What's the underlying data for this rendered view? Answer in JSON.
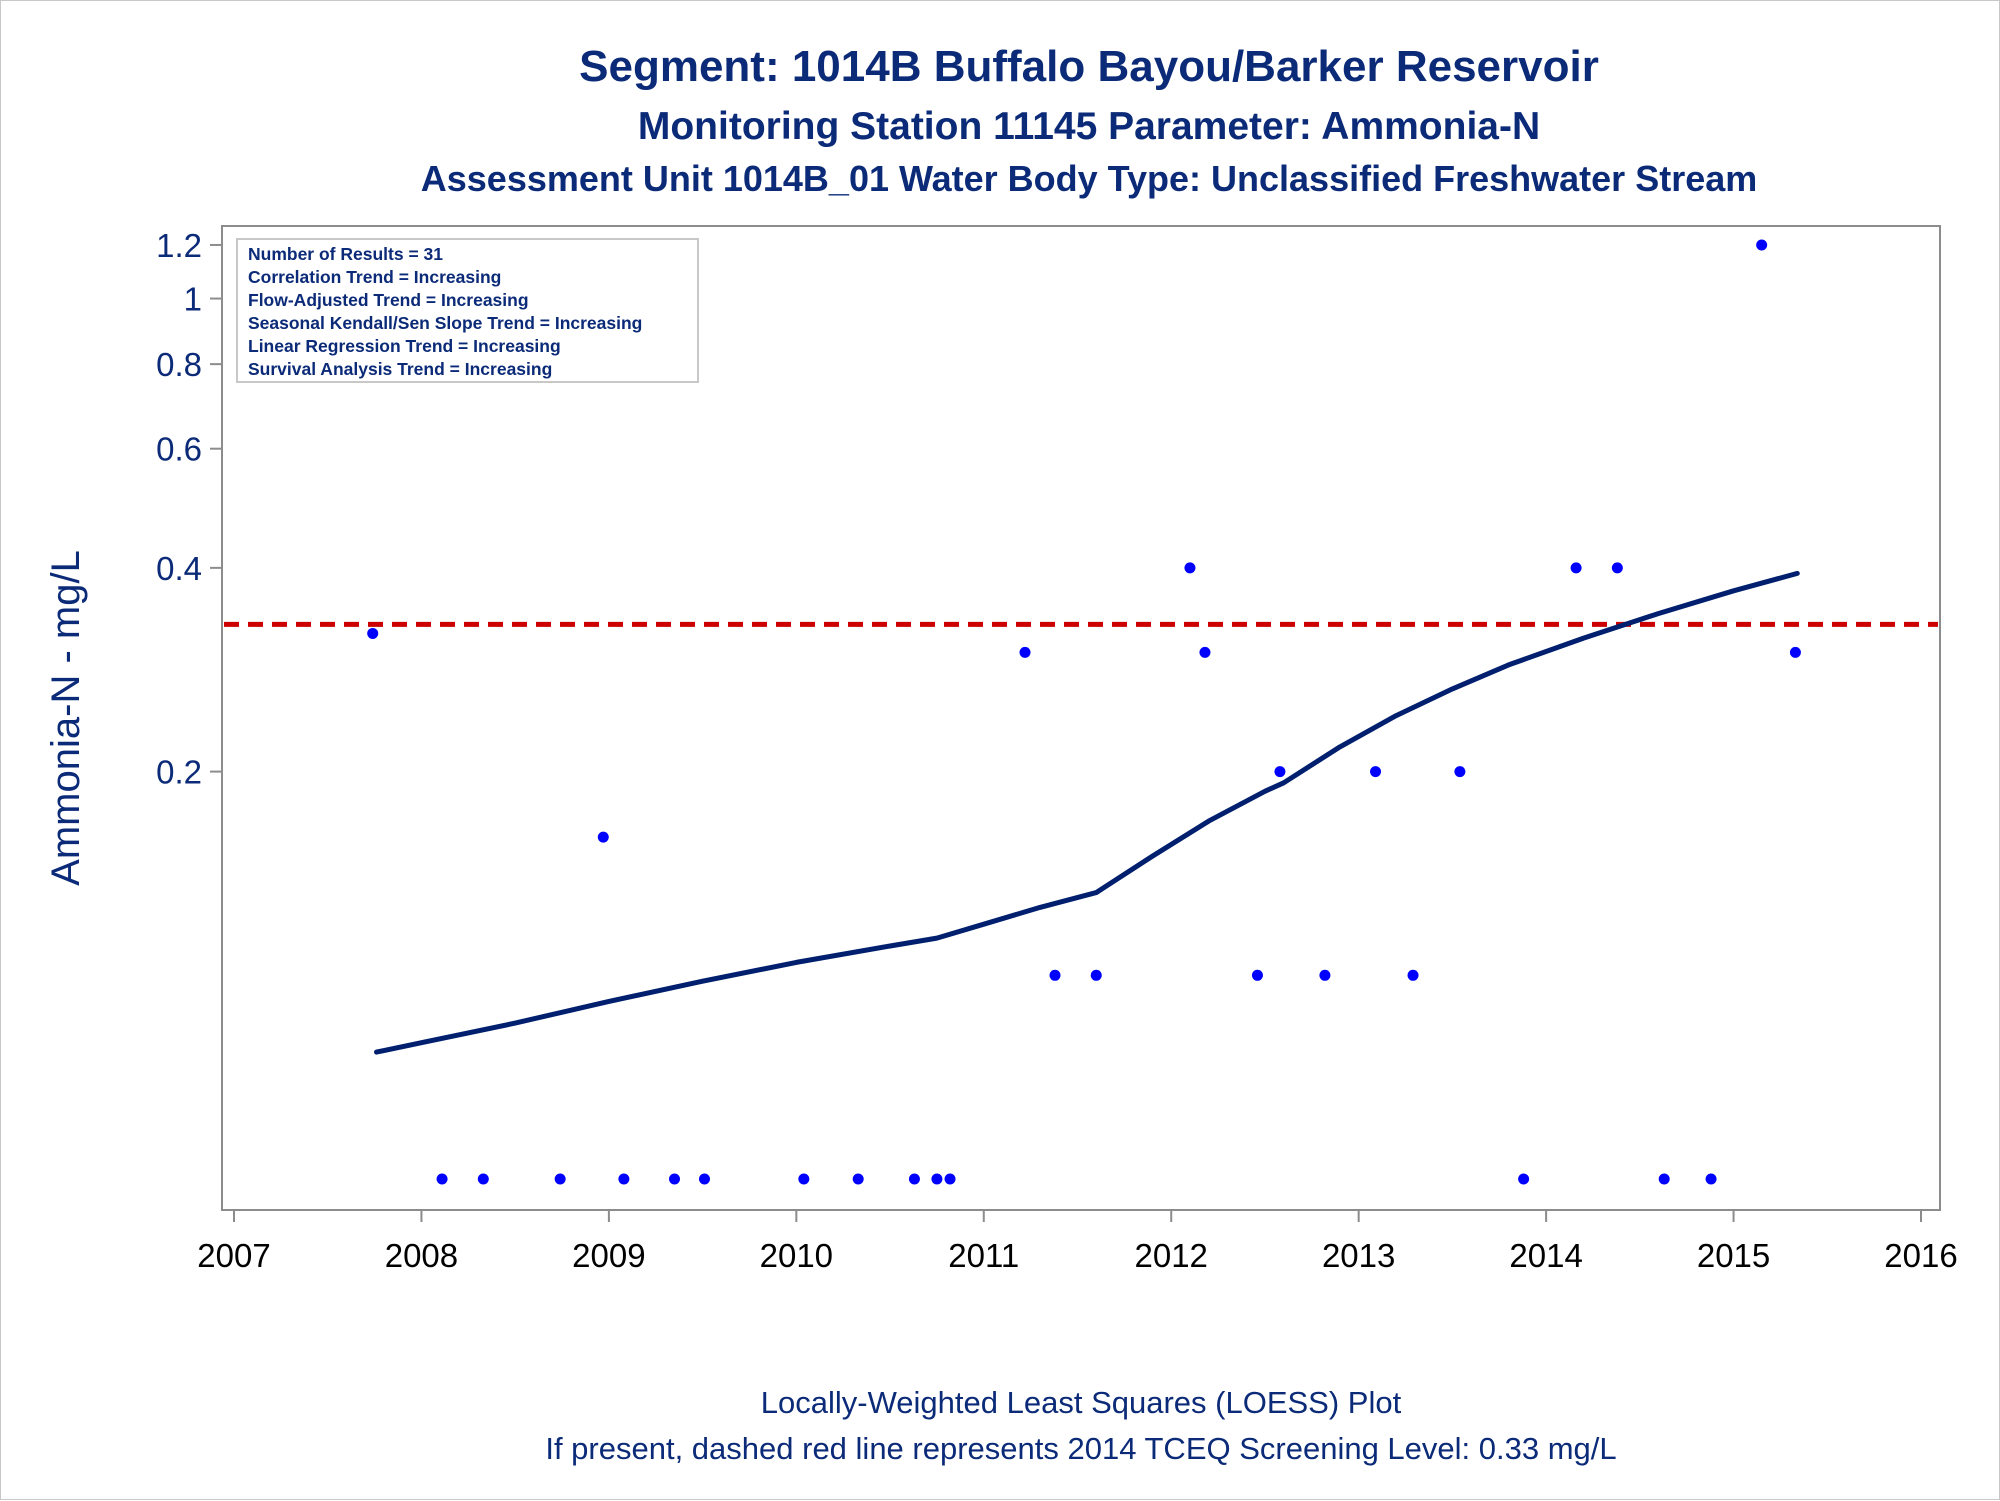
{
  "title_lines": [
    "Segment: 1014B  Buffalo Bayou/Barker Reservoir",
    "Monitoring Station 11145 Parameter: Ammonia-N",
    "Assessment Unit 1014B_01   Water Body Type: Unclassified Freshwater Stream"
  ],
  "footnotes": [
    "Locally-Weighted Least Squares (LOESS) Plot",
    "If present, dashed red line represents 2014 TCEQ Screening Level: 0.33 mg/L"
  ],
  "stats_box": [
    "Number of Results = 31",
    "Correlation Trend = Increasing",
    "Flow-Adjusted Trend = Increasing",
    "Seasonal Kendall/Sen Slope Trend = Increasing",
    "Linear Regression Trend = Increasing",
    "Survival Analysis Trend = Increasing"
  ],
  "colors": {
    "text": "#0b2a78",
    "points": "#0000ff",
    "loess_line": "#001f6e",
    "screening_line": "#cc0000",
    "axis": "#8c8c8c"
  },
  "chart_data": {
    "type": "scatter",
    "title": "Segment: 1014B  Buffalo Bayou/Barker Reservoir",
    "xlabel": "",
    "ylabel": "Ammonia-N - mg/L",
    "x_scale": "date",
    "y_scale": "log",
    "xlim": [
      2007,
      2016
    ],
    "ylim": [
      0.045,
      1.28
    ],
    "x_ticks": [
      2007,
      2008,
      2009,
      2010,
      2011,
      2012,
      2013,
      2014,
      2015,
      2016
    ],
    "y_ticks": [
      0.2,
      0.4,
      0.6,
      0.8,
      1,
      1.2
    ],
    "y_tick_labels": [
      "0.2",
      "0.4",
      "0.6",
      "0.8",
      "1",
      "1.2"
    ],
    "grid": false,
    "legend": "none",
    "reference_line": {
      "y": 0.33,
      "style": "dashed",
      "color": "#cc0000"
    },
    "points": [
      {
        "x": 2007.74,
        "y": 0.32
      },
      {
        "x": 2008.11,
        "y": 0.05
      },
      {
        "x": 2008.33,
        "y": 0.05
      },
      {
        "x": 2008.74,
        "y": 0.05
      },
      {
        "x": 2008.97,
        "y": 0.16
      },
      {
        "x": 2009.08,
        "y": 0.05
      },
      {
        "x": 2009.35,
        "y": 0.05
      },
      {
        "x": 2009.51,
        "y": 0.05
      },
      {
        "x": 2010.04,
        "y": 0.05
      },
      {
        "x": 2010.33,
        "y": 0.05
      },
      {
        "x": 2010.63,
        "y": 0.05
      },
      {
        "x": 2010.75,
        "y": 0.05
      },
      {
        "x": 2010.82,
        "y": 0.05
      },
      {
        "x": 2011.22,
        "y": 0.3
      },
      {
        "x": 2011.38,
        "y": 0.1
      },
      {
        "x": 2011.6,
        "y": 0.1
      },
      {
        "x": 2012.1,
        "y": 0.4
      },
      {
        "x": 2012.18,
        "y": 0.3
      },
      {
        "x": 2012.46,
        "y": 0.1
      },
      {
        "x": 2012.58,
        "y": 0.2
      },
      {
        "x": 2012.82,
        "y": 0.1
      },
      {
        "x": 2013.09,
        "y": 0.2
      },
      {
        "x": 2013.29,
        "y": 0.1
      },
      {
        "x": 2013.54,
        "y": 0.2
      },
      {
        "x": 2013.88,
        "y": 0.05
      },
      {
        "x": 2014.16,
        "y": 0.4
      },
      {
        "x": 2014.38,
        "y": 0.4
      },
      {
        "x": 2014.63,
        "y": 0.05
      },
      {
        "x": 2014.88,
        "y": 0.05
      },
      {
        "x": 2015.15,
        "y": 1.2
      },
      {
        "x": 2015.33,
        "y": 0.3
      }
    ],
    "loess": [
      {
        "x": 2007.76,
        "y": 0.077
      },
      {
        "x": 2008.0,
        "y": 0.0795
      },
      {
        "x": 2008.5,
        "y": 0.085
      },
      {
        "x": 2009.0,
        "y": 0.0915
      },
      {
        "x": 2009.5,
        "y": 0.098
      },
      {
        "x": 2010.0,
        "y": 0.1045
      },
      {
        "x": 2010.5,
        "y": 0.1105
      },
      {
        "x": 2010.75,
        "y": 0.1135
      },
      {
        "x": 2011.0,
        "y": 0.119
      },
      {
        "x": 2011.3,
        "y": 0.126
      },
      {
        "x": 2011.6,
        "y": 0.1325
      },
      {
        "x": 2011.9,
        "y": 0.15
      },
      {
        "x": 2012.2,
        "y": 0.169
      },
      {
        "x": 2012.5,
        "y": 0.187
      },
      {
        "x": 2012.6,
        "y": 0.1925
      },
      {
        "x": 2012.9,
        "y": 0.2175
      },
      {
        "x": 2013.2,
        "y": 0.242
      },
      {
        "x": 2013.5,
        "y": 0.265
      },
      {
        "x": 2013.8,
        "y": 0.2875
      },
      {
        "x": 2014.2,
        "y": 0.315
      },
      {
        "x": 2014.6,
        "y": 0.3425
      },
      {
        "x": 2015.0,
        "y": 0.37
      },
      {
        "x": 2015.34,
        "y": 0.3925
      }
    ]
  }
}
